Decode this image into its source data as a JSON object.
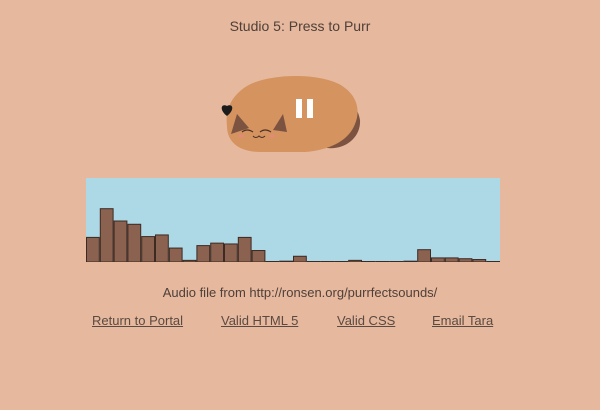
{
  "page": {
    "title": "Studio 5: Press to Purr"
  },
  "player": {
    "state": "playing",
    "toggle_icon": "pause-icon",
    "colors": {
      "cat_body": "#d4935f",
      "cat_tail": "#7c5341",
      "cat_ear_inner": "#7c5341",
      "heart": "#1b1b1b",
      "pause_bars": "#ffffff",
      "blush": "#e58a7a"
    }
  },
  "visualizer": {
    "background": "#add8e6",
    "bar_fill": "#8b6150",
    "bar_stroke": "#3d2a22",
    "max_level": 100,
    "levels": [
      30,
      65,
      50,
      46,
      31,
      33,
      17,
      2,
      20,
      23,
      22,
      30,
      14,
      0,
      1,
      7,
      0,
      0,
      0,
      2,
      0,
      0,
      0,
      1,
      15,
      5,
      5,
      4,
      3,
      0
    ]
  },
  "credit": {
    "text": "Audio file from http://ronsen.org/purrfectsounds/"
  },
  "footer": {
    "links": [
      {
        "label": "Return to Portal"
      },
      {
        "label": "Valid HTML 5"
      },
      {
        "label": "Valid CSS"
      },
      {
        "label": "Email Tara"
      }
    ]
  }
}
